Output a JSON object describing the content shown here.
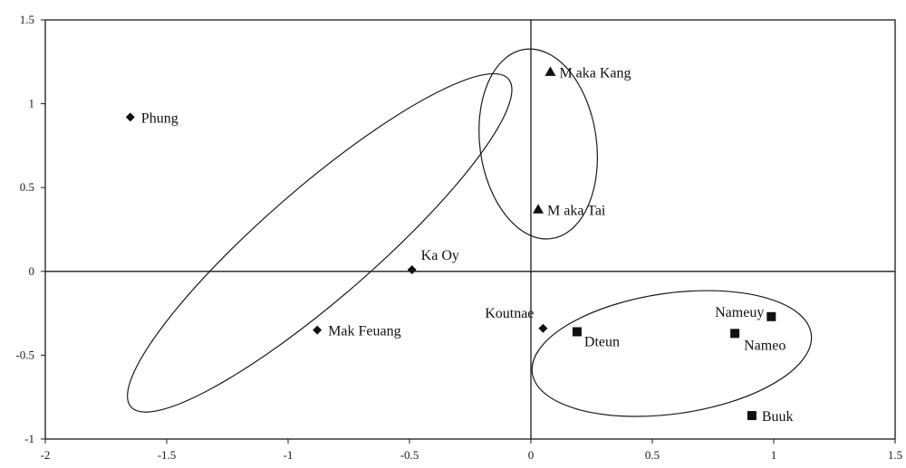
{
  "chart_data": {
    "type": "scatter",
    "xlim": [
      -2,
      1.5
    ],
    "ylim": [
      -1,
      1.5
    ],
    "x_ticks": [
      -2,
      -1.5,
      -1,
      -0.5,
      0,
      0.5,
      1,
      1.5
    ],
    "x_tick_labels": [
      "-2",
      "-1.5",
      "-1",
      "-0.5",
      "0",
      "0.5",
      "1",
      "1.5"
    ],
    "y_ticks": [
      -1,
      -0.5,
      0,
      0.5,
      1,
      1.5
    ],
    "y_tick_labels": [
      "-1",
      "-0.5",
      "0",
      "0.5",
      "1",
      "1.5"
    ],
    "grid": false,
    "zero_lines": true,
    "series": [
      {
        "marker": "diamond",
        "color": "#111111",
        "points": [
          {
            "label": "Phung",
            "x": -1.65,
            "y": 0.92
          },
          {
            "label": "Ka Oy",
            "x": -0.49,
            "y": 0.01
          },
          {
            "label": "Mak Feuang",
            "x": -0.88,
            "y": -0.35
          },
          {
            "label": "Koutnae",
            "x": 0.05,
            "y": -0.34
          }
        ]
      },
      {
        "marker": "triangle",
        "color": "#111111",
        "points": [
          {
            "label": "M aka Kang",
            "x": 0.08,
            "y": 1.19
          },
          {
            "label": "M aka Tai",
            "x": 0.03,
            "y": 0.37
          }
        ]
      },
      {
        "marker": "square",
        "color": "#111111",
        "points": [
          {
            "label": "Dteun",
            "x": 0.19,
            "y": -0.36
          },
          {
            "label": "Nameuy",
            "x": 0.99,
            "y": -0.27
          },
          {
            "label": "Nameo",
            "x": 0.84,
            "y": -0.37
          },
          {
            "label": "Buuk",
            "x": 0.91,
            "y": -0.86
          }
        ]
      }
    ],
    "groupings": [
      {
        "shape": "ellipse",
        "cx": -0.87,
        "cy": 0.17,
        "rx": 1.03,
        "ry": 0.33,
        "angle_deg": 41
      },
      {
        "shape": "ellipse",
        "cx": 0.03,
        "cy": 0.76,
        "rx": 0.24,
        "ry": 0.57,
        "angle_deg": 8
      },
      {
        "shape": "ellipse",
        "cx": 0.58,
        "cy": -0.49,
        "rx": 0.58,
        "ry": 0.36,
        "angle_deg": 8
      }
    ]
  }
}
